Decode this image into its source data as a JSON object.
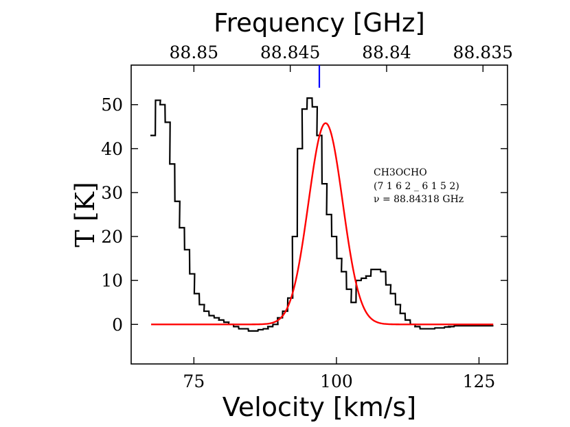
{
  "chart_data": {
    "type": "line",
    "xlabel": "Velocity [km/s]",
    "ylabel": "T [K]",
    "x2label": "Frequency [GHz]",
    "xlim": [
      64,
      130
    ],
    "ylim": [
      -9,
      59
    ],
    "x_ticks": [
      75,
      100,
      125
    ],
    "y_ticks": [
      0,
      10,
      20,
      30,
      40,
      50
    ],
    "x2_ticks": [
      {
        "label": "88.85",
        "velocity": 75.0
      },
      {
        "label": "88.845",
        "velocity": 91.9
      },
      {
        "label": "88.84",
        "velocity": 108.8
      },
      {
        "label": "88.835",
        "velocity": 125.7
      }
    ],
    "marker_line": {
      "velocity": 97.0,
      "color": "#0000ff"
    },
    "annotation": {
      "lines": [
        "CH3OCHO",
        "(7 1 6 2 _ 6 1 5 2)",
        "ν = 88.84318 GHz"
      ]
    },
    "grid": false,
    "series": [
      {
        "kind": "observed-spectrum-steps",
        "color": "#000000",
        "bin_width": 0.86,
        "x": [
          67.8,
          68.7,
          69.5,
          70.4,
          71.2,
          72.1,
          72.9,
          73.8,
          74.7,
          75.5,
          76.4,
          77.2,
          78.1,
          79.0,
          79.8,
          80.7,
          81.5,
          82.4,
          83.3,
          84.1,
          85.0,
          85.8,
          86.7,
          87.6,
          88.4,
          89.3,
          90.1,
          91.0,
          91.9,
          92.7,
          93.6,
          94.4,
          95.3,
          96.2,
          97.0,
          97.9,
          98.7,
          99.6,
          100.5,
          101.3,
          102.2,
          103.0,
          103.9,
          104.8,
          105.6,
          106.5,
          107.3,
          108.2,
          109.1,
          109.9,
          110.8,
          111.6,
          112.5,
          113.4,
          114.2,
          115.1,
          115.9,
          116.8,
          117.7,
          118.5,
          119.4,
          120.2,
          121.1,
          122.0,
          122.8,
          123.7,
          124.5,
          125.4,
          126.3,
          127.1
        ],
        "y": [
          43,
          51,
          50,
          46,
          36.5,
          28,
          22,
          17,
          11.5,
          7,
          4.5,
          3,
          2,
          1.5,
          1,
          0.5,
          0,
          -0.5,
          -1,
          -1,
          -1.5,
          -1.5,
          -1.2,
          -1,
          -0.5,
          0,
          1.5,
          3,
          6,
          20,
          40,
          49,
          51.5,
          49.5,
          43,
          32,
          25,
          20,
          15,
          12,
          8,
          5,
          10,
          10.5,
          11,
          12.5,
          12.5,
          12,
          9,
          7,
          4.5,
          2.5,
          1,
          0,
          -0.5,
          -1,
          -1,
          -1,
          -0.8,
          -0.8,
          -0.6,
          -0.5,
          -0.3,
          -0.3,
          -0.3,
          -0.3,
          -0.3,
          -0.3,
          -0.3,
          -0.3
        ]
      },
      {
        "kind": "gaussian-fit",
        "color": "#ff0000",
        "amplitude": 45.8,
        "center": 98.1,
        "sigma": 3.0,
        "x_range": [
          67.5,
          127.5
        ]
      }
    ]
  }
}
